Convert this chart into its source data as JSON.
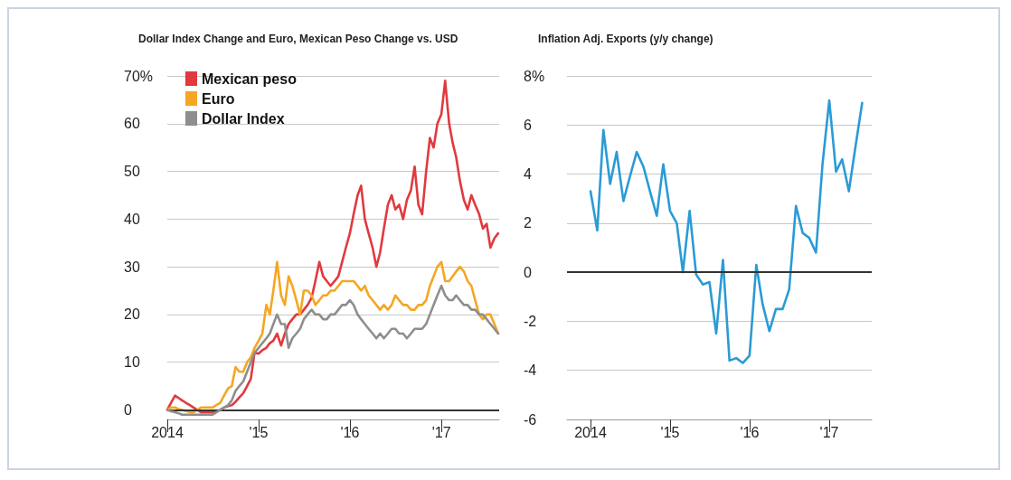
{
  "chart_data": [
    {
      "type": "line",
      "title": "Dollar Index Change and Euro, Mexican Peso Change vs. USD",
      "x": [
        "2014-01-01",
        "2014-01-16",
        "2014-02-01",
        "2014-02-15",
        "2014-03-01",
        "2014-03-16",
        "2014-04-01",
        "2014-04-16",
        "2014-05-01",
        "2014-05-16",
        "2014-06-01",
        "2014-06-16",
        "2014-07-01",
        "2014-07-16",
        "2014-08-01",
        "2014-08-16",
        "2014-09-01",
        "2014-09-16",
        "2014-10-01",
        "2014-10-16",
        "2014-11-01",
        "2014-11-16",
        "2014-12-01",
        "2014-12-16",
        "2015-01-01",
        "2015-01-16",
        "2015-02-01",
        "2015-02-15",
        "2015-03-01",
        "2015-03-16",
        "2015-04-01",
        "2015-04-16",
        "2015-05-01",
        "2015-05-16",
        "2015-06-01",
        "2015-06-16",
        "2015-07-01",
        "2015-07-16",
        "2015-08-01",
        "2015-08-16",
        "2015-09-01",
        "2015-09-16",
        "2015-10-01",
        "2015-10-16",
        "2015-11-01",
        "2015-11-16",
        "2015-12-01",
        "2015-12-16",
        "2016-01-01",
        "2016-01-16",
        "2016-02-01",
        "2016-02-15",
        "2016-03-01",
        "2016-03-16",
        "2016-04-01",
        "2016-04-16",
        "2016-05-01",
        "2016-05-16",
        "2016-06-01",
        "2016-06-16",
        "2016-07-01",
        "2016-07-16",
        "2016-08-01",
        "2016-08-16",
        "2016-09-01",
        "2016-09-16",
        "2016-10-01",
        "2016-10-16",
        "2016-11-01",
        "2016-11-16",
        "2016-12-01",
        "2016-12-16",
        "2017-01-01",
        "2017-01-16",
        "2017-02-01",
        "2017-02-15",
        "2017-03-01",
        "2017-03-16",
        "2017-04-01",
        "2017-04-16",
        "2017-05-01",
        "2017-05-16",
        "2017-06-01",
        "2017-06-16",
        "2017-07-01",
        "2017-07-16",
        "2017-08-01",
        "2017-08-16"
      ],
      "series": [
        {
          "name": "Mexican peso",
          "color": "#e03a3e",
          "values": [
            0,
            1.5,
            3,
            2.5,
            2,
            1.5,
            1,
            0.5,
            0,
            -0.5,
            -0.5,
            -0.5,
            -0.5,
            -0.3,
            0,
            0.5,
            0.8,
            1,
            1.7,
            2.6,
            3.5,
            5,
            6.5,
            12,
            11.8,
            12.5,
            13,
            14,
            14.5,
            16,
            13.5,
            16,
            18,
            19,
            20,
            20,
            21,
            22,
            23.5,
            27,
            31,
            28,
            27,
            26,
            27,
            28,
            31,
            34,
            37,
            41,
            45,
            47,
            40,
            37,
            34,
            30,
            33,
            38,
            43,
            45,
            42,
            43,
            40,
            44,
            46,
            51,
            43,
            41,
            50,
            57,
            55,
            60,
            62,
            69,
            60,
            56,
            53,
            48,
            44,
            42,
            45,
            43,
            41,
            38,
            39,
            34,
            36,
            37
          ]
        },
        {
          "name": "Euro",
          "color": "#f5a623",
          "values": [
            0,
            0.5,
            0.5,
            0.2,
            0,
            -0.2,
            -0.5,
            -0.5,
            0,
            0.5,
            0.5,
            0.5,
            0.5,
            1,
            1.5,
            3,
            4.5,
            5,
            9,
            8,
            8,
            10,
            11,
            13,
            14.5,
            16,
            22,
            20,
            25,
            31,
            24,
            22,
            28,
            26,
            23,
            20,
            25,
            25,
            24,
            22,
            23,
            24,
            24,
            25,
            25,
            26,
            27,
            27,
            27,
            27,
            26,
            25,
            26,
            24,
            23,
            22,
            21,
            22,
            21,
            22,
            24,
            23,
            22,
            22,
            21,
            21,
            22,
            22,
            23,
            26,
            28,
            30,
            31,
            27,
            27,
            28,
            29,
            30,
            29,
            27,
            26,
            23,
            20,
            19,
            20,
            20,
            18,
            16
          ]
        },
        {
          "name": "Dollar Index",
          "color": "#8e8e8e",
          "values": [
            0,
            -0.3,
            -0.5,
            -0.7,
            -1,
            -1,
            -1,
            -1,
            -1,
            -1,
            -1,
            -1,
            -1,
            -0.5,
            0,
            0.5,
            1,
            2,
            4,
            5,
            6,
            8,
            10,
            12,
            13,
            14,
            15,
            16,
            18,
            20,
            18,
            18,
            13,
            15,
            16,
            17,
            19,
            20,
            21,
            20,
            20,
            19,
            19,
            20,
            20,
            21,
            22,
            22,
            23,
            22,
            20,
            19,
            18,
            17,
            16,
            15,
            16,
            15,
            16,
            17,
            17,
            16,
            16,
            15,
            16,
            17,
            17,
            17,
            18,
            20,
            22,
            24,
            26,
            24,
            23,
            23,
            24,
            23,
            22,
            22,
            21,
            21,
            20,
            20,
            19,
            18,
            17,
            16
          ]
        }
      ],
      "xlim": [
        "2014-01-01",
        "2017-08-20"
      ],
      "xticks": [
        {
          "value": "2014-01-01",
          "label": "2014"
        },
        {
          "value": "2015-01-01",
          "label": "'15"
        },
        {
          "value": "2016-01-01",
          "label": "'16"
        },
        {
          "value": "2017-01-01",
          "label": "'17"
        }
      ],
      "ylim": [
        -2,
        70
      ],
      "yticks": [
        0,
        10,
        20,
        30,
        40,
        50,
        60,
        {
          "value": 70,
          "label": "70%"
        }
      ],
      "ref_lines": [
        {
          "axis": "y",
          "value": 0,
          "color": "#333333"
        }
      ],
      "grid": "y",
      "legend": "top left",
      "marker": "none",
      "line_style": "solid"
    },
    {
      "type": "line",
      "title": "Inflation Adj. Exports (y/y change)",
      "x": [
        "2014-01",
        "2014-02",
        "2014-03",
        "2014-04",
        "2014-05",
        "2014-06",
        "2014-07",
        "2014-08",
        "2014-09",
        "2014-10",
        "2014-11",
        "2014-12",
        "2015-01",
        "2015-02",
        "2015-03",
        "2015-04",
        "2015-05",
        "2015-06",
        "2015-07",
        "2015-08",
        "2015-09",
        "2015-10",
        "2015-11",
        "2015-12",
        "2016-01",
        "2016-02",
        "2016-03",
        "2016-04",
        "2016-05",
        "2016-06",
        "2016-07",
        "2016-08",
        "2016-09",
        "2016-10",
        "2016-11",
        "2016-12",
        "2017-01",
        "2017-02",
        "2017-03",
        "2017-04",
        "2017-05",
        "2017-06"
      ],
      "series": [
        {
          "color": "#2a9bd5",
          "values": [
            3.3,
            1.7,
            5.8,
            3.6,
            4.9,
            2.9,
            3.9,
            4.9,
            4.3,
            3.3,
            2.3,
            4.4,
            2.5,
            2,
            0,
            2.5,
            -0.1,
            -0.5,
            -0.4,
            -2.5,
            0.5,
            -3.6,
            -3.5,
            -3.7,
            -3.4,
            0.3,
            -1.3,
            -2.4,
            -1.5,
            -1.5,
            -0.7,
            2.7,
            1.6,
            1.4,
            0.8,
            4.4,
            7,
            4.1,
            4.6,
            3.3,
            5.1,
            6.9
          ]
        }
      ],
      "xlim": [
        "2013-09-15",
        "2017-07-15"
      ],
      "xticks": [
        {
          "value": "2014-01-01",
          "label": "2014"
        },
        {
          "value": "2015-01-01",
          "label": "'15"
        },
        {
          "value": "2016-01-01",
          "label": "'16"
        },
        {
          "value": "2017-01-01",
          "label": "'17"
        }
      ],
      "ylim": [
        -6,
        8
      ],
      "yticks": [
        -6,
        -4,
        -2,
        0,
        2,
        4,
        6,
        {
          "value": 8,
          "label": "8%"
        }
      ],
      "ref_lines": [
        {
          "axis": "y",
          "value": 0,
          "color": "#333333"
        }
      ],
      "grid": "y",
      "marker": "none",
      "line_style": "solid"
    }
  ]
}
